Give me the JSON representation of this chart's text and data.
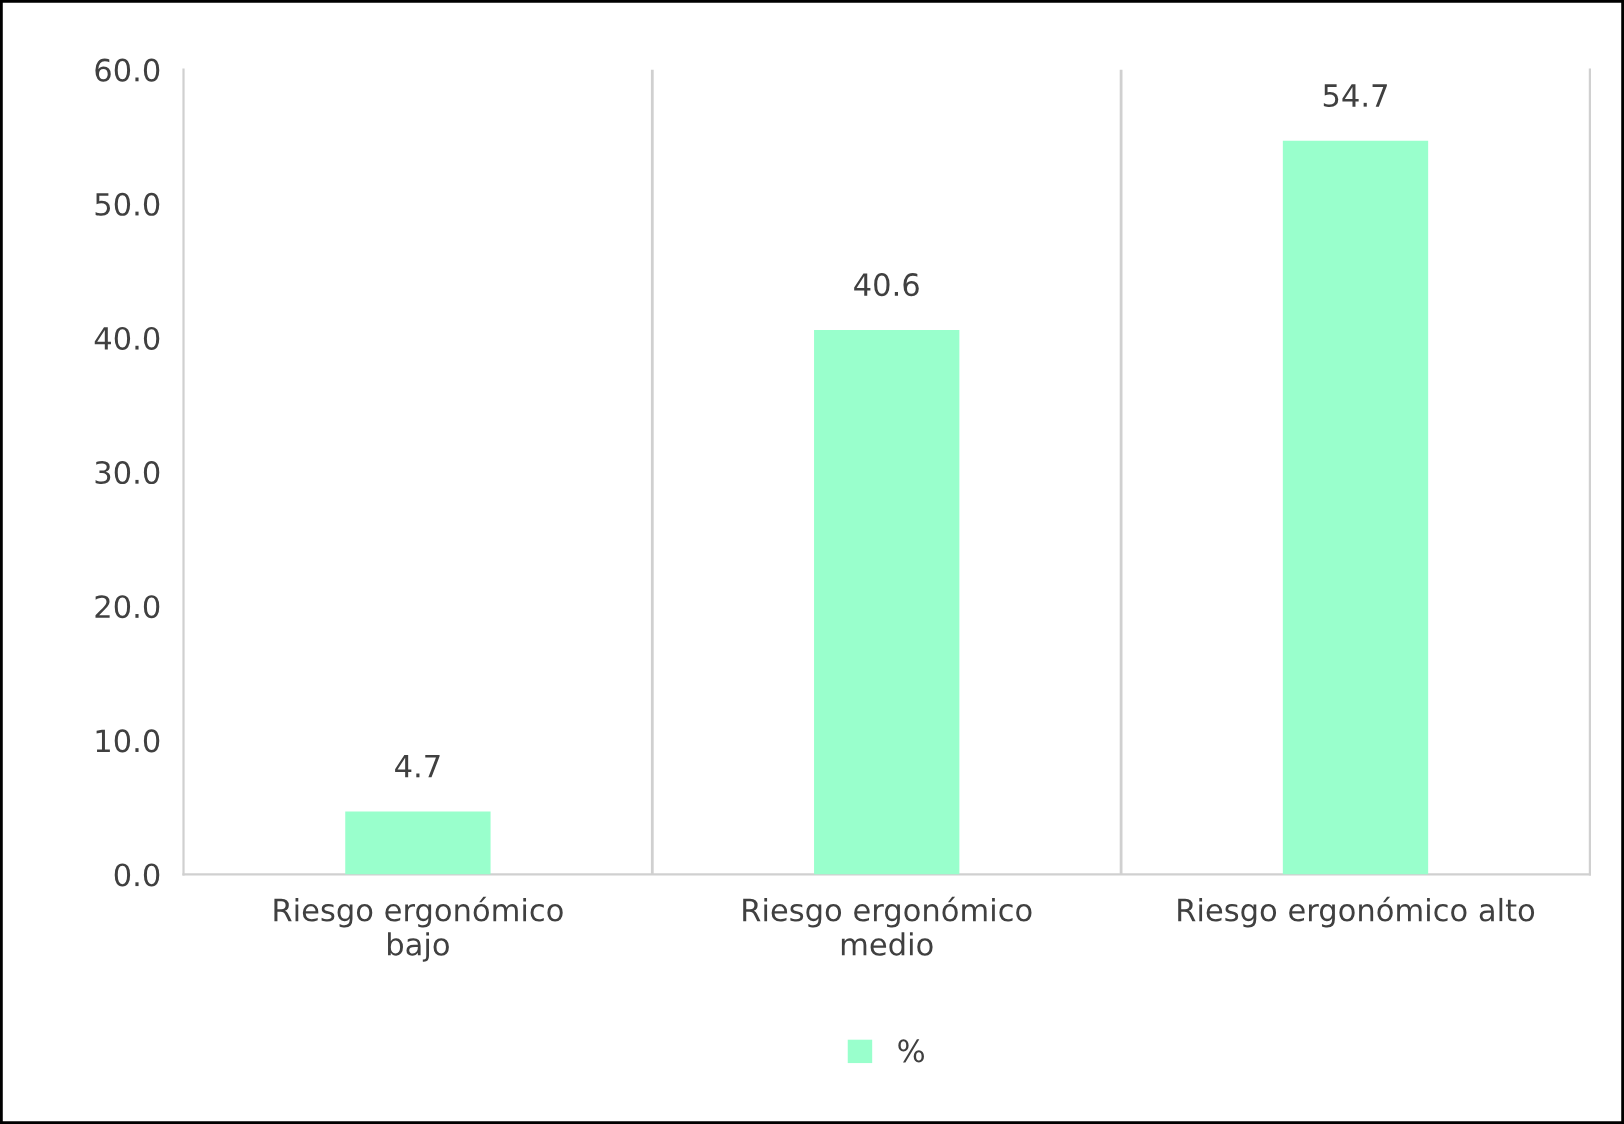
{
  "chart_data": {
    "type": "bar",
    "categories": [
      "Riesgo ergonómico\nbajo",
      "Riesgo ergonómico\nmedio",
      "Riesgo ergonómico alto"
    ],
    "series": [
      {
        "name": "%",
        "color": "#99ffcc",
        "values": [
          4.7,
          40.6,
          54.7
        ]
      }
    ],
    "ylim": [
      0,
      60
    ],
    "yticks": [
      {
        "value": 0,
        "label": "0.0"
      },
      {
        "value": 10,
        "label": "10.0"
      },
      {
        "value": 20,
        "label": "20.0"
      },
      {
        "value": 30,
        "label": "30.0"
      },
      {
        "value": 40,
        "label": "40.0"
      },
      {
        "value": 50,
        "label": "50.0"
      },
      {
        "value": 60,
        "label": "60.0"
      }
    ],
    "data_labels": true,
    "grid": "x",
    "legend": "bottom"
  }
}
